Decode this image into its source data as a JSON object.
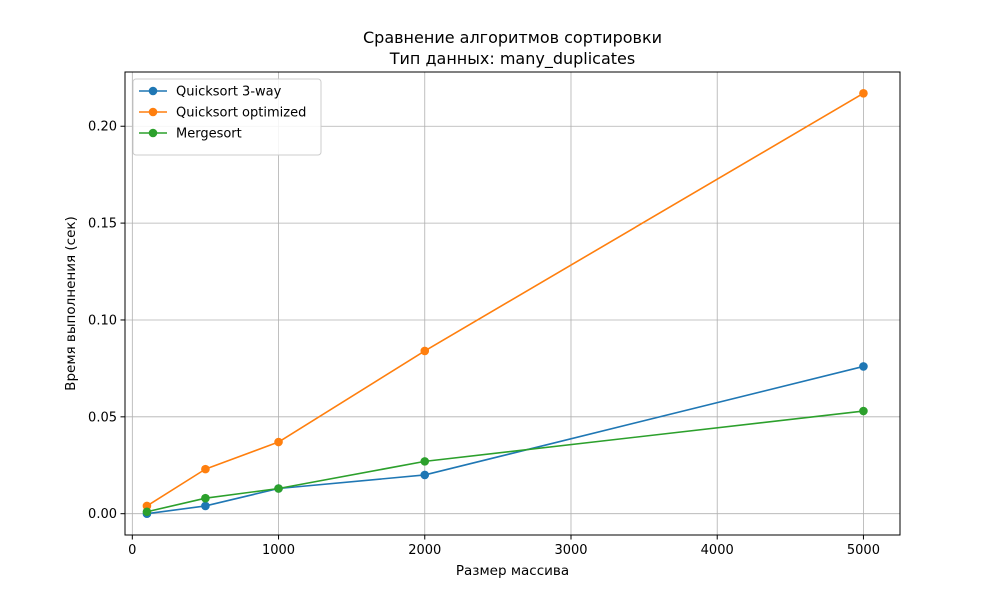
{
  "chart_data": {
    "type": "line",
    "title": "Сравнение алгоритмов сортировки",
    "subtitle": "Тип данных: many_duplicates",
    "xlabel": "Размер массива",
    "ylabel": "Время выполнения (сек)",
    "xlim": [
      -50,
      5250
    ],
    "ylim": [
      -0.011,
      0.228
    ],
    "x_ticks": [
      0,
      1000,
      2000,
      3000,
      4000,
      5000
    ],
    "x_tick_labels": [
      "0",
      "1000",
      "2000",
      "3000",
      "4000",
      "5000"
    ],
    "y_ticks": [
      0.0,
      0.05,
      0.1,
      0.15,
      0.2
    ],
    "y_tick_labels": [
      "0.00",
      "0.05",
      "0.10",
      "0.15",
      "0.20"
    ],
    "grid": true,
    "legend_position": "top-left",
    "x": [
      100,
      500,
      1000,
      2000,
      5000
    ],
    "series": [
      {
        "name": "Quicksort 3-way",
        "color": "#1f77b4",
        "values": [
          0.0,
          0.004,
          0.013,
          0.02,
          0.076
        ]
      },
      {
        "name": "Quicksort optimized",
        "color": "#ff7f0e",
        "values": [
          0.004,
          0.023,
          0.037,
          0.084,
          0.217
        ]
      },
      {
        "name": "Mergesort",
        "color": "#2ca02c",
        "values": [
          0.001,
          0.008,
          0.013,
          0.027,
          0.053
        ]
      }
    ]
  }
}
